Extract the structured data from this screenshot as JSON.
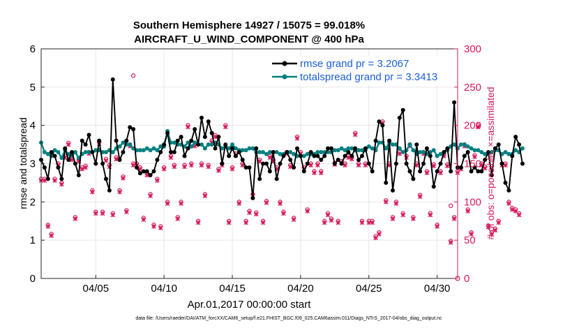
{
  "chart_data": {
    "type": "line",
    "title_line1": "Southern Hemisphere 14927 / 15075 = 99.018%",
    "title_line2": "AIRCRAFT_U_WIND_COMPONENT @ 400 hPa",
    "xlabel": "Apr.01,2017 00:00:00 start",
    "ylabel": "rmse and totalspread",
    "y2label": "# of obs: o=possible; ×=assimilated",
    "xlim": [
      1.0,
      31.5
    ],
    "ylim": [
      0,
      6
    ],
    "y2lim": [
      0,
      300
    ],
    "x_ticks": [
      5,
      10,
      15,
      20,
      25,
      30
    ],
    "x_tick_labels": [
      "04/05",
      "04/10",
      "04/15",
      "04/20",
      "04/25",
      "04/30"
    ],
    "y_ticks": [
      0,
      1,
      2,
      3,
      4,
      5,
      6
    ],
    "y_tick_labels": [
      "0",
      "1",
      "2",
      "3",
      "4",
      "5",
      "6"
    ],
    "y2_ticks": [
      0,
      50,
      100,
      150,
      200,
      250,
      300
    ],
    "y2_tick_labels": [
      "0",
      "50",
      "100",
      "150",
      "200",
      "250",
      "300"
    ],
    "grid": true,
    "legend_position": "top-right",
    "series": [
      {
        "name": "rmse grand pr = 3.2067",
        "color": "#000000",
        "x_start": 1.0,
        "x_step": 0.25,
        "values": [
          3.1,
          2.9,
          2.6,
          3.3,
          3.2,
          2.9,
          2.6,
          3.4,
          3.1,
          3.3,
          3.0,
          2.7,
          3.6,
          3.5,
          3.75,
          3.3,
          3.0,
          3.6,
          3.0,
          2.6,
          2.3,
          5.2,
          3.6,
          3.1,
          3.3,
          3.6,
          3.95,
          3.9,
          2.9,
          2.75,
          2.8,
          2.8,
          2.7,
          2.8,
          3.1,
          3.3,
          3.5,
          3.8,
          3.3,
          3.3,
          3.6,
          3.7,
          3.2,
          3.4,
          3.6,
          3.9,
          3.5,
          4.2,
          3.7,
          4.1,
          3.8,
          3.4,
          3.7,
          3.0,
          3.5,
          3.2,
          3.4,
          3.2,
          3.3,
          3.1,
          2.9,
          2.9,
          2.1,
          3.4,
          2.6,
          3.0,
          3.0,
          2.8,
          3.3,
          2.6,
          3.0,
          3.2,
          3.3,
          3.1,
          2.9,
          3.4,
          3.2,
          2.8,
          3.0,
          3.3,
          3.2,
          3.2,
          3.1,
          3.2,
          3.4,
          3.4,
          3.0,
          3.1,
          3.0,
          3.2,
          3.3,
          3.2,
          3.4,
          3.1,
          3.2,
          3.4,
          3.0,
          2.8,
          3.6,
          4.1,
          4.0,
          2.5,
          3.6,
          2.3,
          3.0,
          4.2,
          4.4,
          3.0,
          2.8,
          2.6,
          3.5,
          2.8,
          3.0,
          3.4,
          3.2,
          2.4,
          2.8,
          3.0,
          3.3,
          3.4,
          2.8,
          4.6,
          2.9,
          2.9,
          3.2,
          3.3,
          2.8,
          2.9,
          2.8,
          2.8,
          3.1,
          3.3,
          2.7,
          3.4,
          3.5,
          3.0,
          2.5,
          2.3,
          3.2,
          3.7,
          3.5,
          3.0
        ]
      },
      {
        "name": "totalspread grand pr = 3.3413",
        "color": "#008080",
        "x_start": 1.0,
        "x_step": 0.25,
        "values": [
          3.55,
          3.3,
          3.25,
          3.2,
          3.35,
          3.3,
          3.15,
          3.35,
          3.25,
          3.2,
          3.3,
          3.15,
          3.25,
          3.3,
          3.3,
          3.3,
          3.35,
          3.35,
          3.3,
          3.3,
          3.35,
          3.3,
          3.4,
          3.45,
          3.55,
          3.5,
          3.5,
          3.4,
          3.35,
          3.35,
          3.35,
          3.4,
          3.35,
          3.4,
          3.35,
          3.45,
          3.45,
          3.85,
          3.55,
          3.55,
          3.5,
          3.5,
          3.45,
          3.55,
          3.45,
          3.55,
          3.5,
          3.5,
          3.4,
          3.5,
          3.5,
          3.55,
          3.5,
          3.4,
          3.45,
          3.4,
          3.5,
          3.4,
          3.35,
          3.35,
          3.35,
          3.4,
          3.4,
          3.3,
          3.3,
          3.3,
          3.25,
          3.3,
          3.3,
          3.3,
          3.25,
          3.25,
          3.3,
          3.3,
          3.25,
          3.2,
          3.2,
          3.2,
          3.25,
          3.25,
          3.25,
          3.3,
          3.3,
          3.3,
          3.3,
          3.3,
          3.35,
          3.35,
          3.4,
          3.35,
          3.4,
          3.4,
          3.35,
          3.35,
          3.35,
          3.35,
          3.45,
          3.4,
          3.35,
          3.55,
          3.55,
          3.4,
          3.55,
          3.5,
          3.5,
          3.4,
          3.3,
          3.35,
          3.5,
          3.35,
          3.25,
          3.3,
          3.3,
          3.25,
          3.3,
          3.35,
          3.2,
          3.25,
          3.3,
          3.35,
          3.45,
          3.5,
          3.4,
          3.5,
          3.5,
          3.45,
          3.4,
          3.35,
          3.35,
          3.3,
          3.25,
          3.25,
          3.3,
          3.35,
          3.35,
          3.25,
          3.3,
          3.25,
          3.25,
          3.35,
          3.3,
          3.4
        ]
      },
      {
        "name": "possible",
        "axis": "right",
        "marker": "o",
        "color": "#d6195a",
        "x_start": 1.0,
        "x_step": 0.25,
        "values": [
          130,
          130,
          70,
          58,
          130,
          150,
          125,
          160,
          177,
          157,
          80,
          155,
          145,
          147,
          165,
          115,
          87,
          178,
          87,
          156,
          148,
          85,
          158,
          115,
          133,
          89,
          175,
          150,
          150,
          145,
          79,
          137,
          110,
          70,
          130,
          68,
          145,
          100,
          160,
          148,
          80,
          100,
          148,
          200,
          150,
          175,
          75,
          150,
          110,
          148,
          180,
          187,
          143,
          150,
          200,
          75,
          145,
          163,
          100,
          150,
          75,
          88,
          110,
          86,
          155,
          75,
          101,
          160,
          155,
          145,
          100,
          87,
          165,
          148,
          79,
          185,
          165,
          145,
          90,
          150,
          140,
          150,
          140,
          75,
          85,
          78,
          151,
          75,
          153,
          150,
          160,
          158,
          190,
          150,
          75,
          150,
          75,
          75,
          55,
          60,
          205,
          102,
          150,
          80,
          100,
          165,
          85,
          160,
          175,
          80,
          150,
          109,
          165,
          140,
          85,
          149,
          70,
          140,
          162,
          149,
          49,
          80,
          140,
          145,
          175,
          90,
          60,
          161,
          200,
          150,
          146,
          69,
          60,
          65,
          75,
          150,
          150,
          100,
          92,
          90,
          85
        ]
      },
      {
        "name": "assimilated",
        "axis": "right",
        "marker": "x",
        "color": "#d6195a",
        "x_start": 1.0,
        "x_step": 0.25,
        "values": [
          128,
          128,
          68,
          56,
          128,
          148,
          123,
          158,
          175,
          155,
          78,
          153,
          143,
          145,
          163,
          113,
          85,
          176,
          85,
          154,
          146,
          83,
          156,
          113,
          131,
          87,
          173,
          148,
          148,
          143,
          77,
          135,
          108,
          68,
          128,
          66,
          143,
          98,
          158,
          146,
          78,
          98,
          146,
          198,
          148,
          173,
          73,
          148,
          108,
          146,
          178,
          185,
          141,
          148,
          198,
          73,
          143,
          161,
          98,
          148,
          73,
          86,
          108,
          84,
          153,
          73,
          99,
          158,
          153,
          143,
          98,
          85,
          163,
          146,
          77,
          183,
          163,
          143,
          88,
          148,
          138,
          148,
          138,
          73,
          83,
          76,
          149,
          73,
          151,
          148,
          158,
          156,
          188,
          148,
          73,
          148,
          73,
          73,
          53,
          58,
          203,
          100,
          148,
          78,
          98,
          163,
          83,
          158,
          173,
          78,
          148,
          107,
          163,
          138,
          83,
          147,
          68,
          138,
          160,
          147,
          47,
          78,
          138,
          143,
          173,
          88,
          58,
          159,
          198,
          148,
          144,
          67,
          58,
          63,
          73,
          148,
          148,
          98,
          90,
          88,
          83
        ]
      }
    ],
    "extra_possible_points": [
      {
        "x": 7.75,
        "y": 265
      },
      {
        "x": 31.0,
        "y": 95
      }
    ]
  },
  "footer": "data file: /Users/raeder/DAI/ATM_forcXX/CAM6_setup/f.e21.FHIST_BGC.f09_025.CAM6assim.011/Diags_NTrS_2017-04/obs_diag_output.nc",
  "colors": {
    "rmse": "#000000",
    "spread": "#008080",
    "obs": "#d6195a",
    "legend_text": "#1a5fd6"
  }
}
